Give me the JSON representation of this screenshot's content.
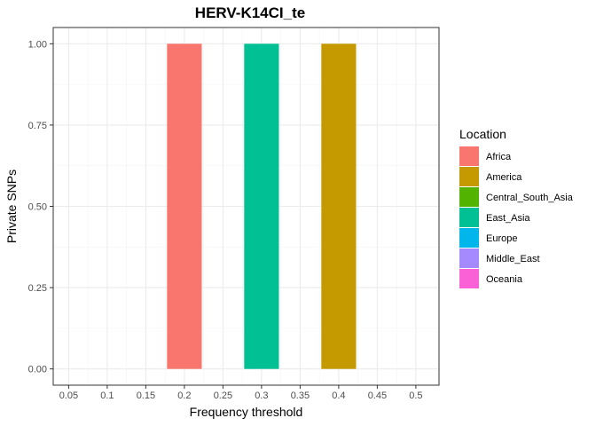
{
  "chart_data": {
    "type": "bar",
    "title": "HERV-K14CI_te",
    "xlabel": "Frequency threshold",
    "ylabel": "Private SNPs",
    "x_ticks": [
      "0.05",
      "0.1",
      "0.15",
      "0.2",
      "0.25",
      "0.3",
      "0.35",
      "0.4",
      "0.45",
      "0.5"
    ],
    "y_ticks": [
      "0.00",
      "0.25",
      "0.50",
      "0.75",
      "1.00"
    ],
    "xlim": [
      0.03,
      0.53
    ],
    "ylim": [
      -0.05,
      1.05
    ],
    "grid": true,
    "legend_position": "right",
    "legend_title": "Location",
    "legend": [
      {
        "name": "Africa",
        "color": "#F8766D"
      },
      {
        "name": "America",
        "color": "#C49A00"
      },
      {
        "name": "Central_South_Asia",
        "color": "#53B400"
      },
      {
        "name": "East_Asia",
        "color": "#00C094"
      },
      {
        "name": "Europe",
        "color": "#00B6EB"
      },
      {
        "name": "Middle_East",
        "color": "#A58AFF"
      },
      {
        "name": "Oceania",
        "color": "#FB61D7"
      }
    ],
    "bars": [
      {
        "x": 0.2,
        "value": 1.0,
        "series": "Africa"
      },
      {
        "x": 0.3,
        "value": 1.0,
        "series": "East_Asia"
      },
      {
        "x": 0.4,
        "value": 1.0,
        "series": "America"
      }
    ]
  }
}
